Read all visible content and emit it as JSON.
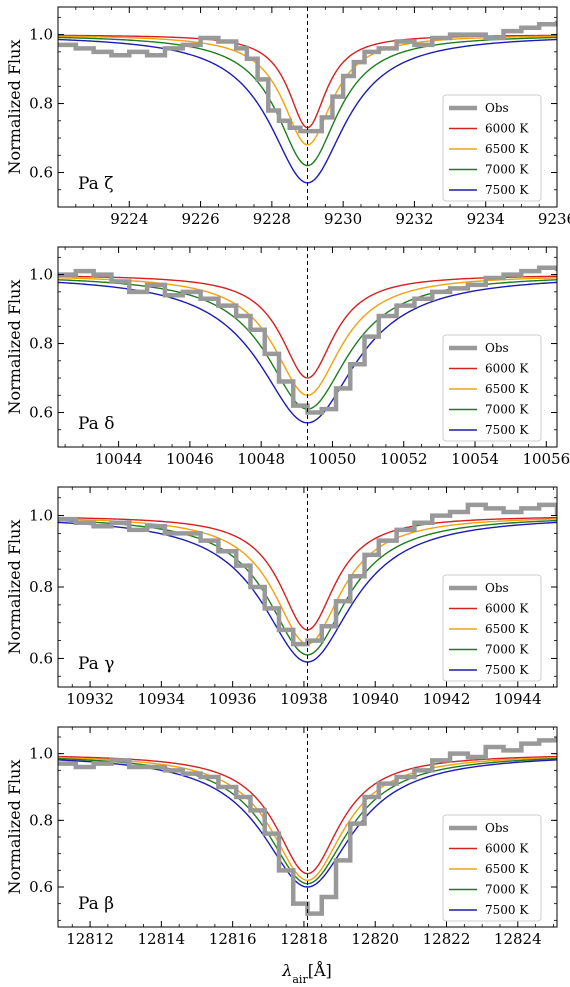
{
  "figure": {
    "xlabel_main": "λ",
    "xlabel_sub": "air",
    "xlabel_unit": "[Å]",
    "ylabel": "Normalized Flux"
  },
  "styles": {
    "obs_color": "#999999",
    "marker_line_color": "#000000"
  },
  "chart_data": [
    {
      "type": "line",
      "label": "Pa ζ",
      "line_center": 9229.0,
      "xlim": [
        9222.0,
        9236.0
      ],
      "ylim": [
        0.5,
        1.08
      ],
      "xticks": [
        9224,
        9226,
        9228,
        9230,
        9232,
        9234,
        9236
      ],
      "yticks": [
        0.6,
        0.8,
        1.0
      ],
      "legend_position": "lower-right",
      "series": [
        {
          "name": "Obs",
          "kind": "obs",
          "color": "#999999",
          "x": [
            9222.0,
            9222.5,
            9223.0,
            9223.5,
            9224.0,
            9224.5,
            9225.0,
            9225.5,
            9226.0,
            9226.5,
            9227.0,
            9227.3,
            9227.6,
            9227.9,
            9228.2,
            9228.5,
            9228.8,
            9229.1,
            9229.4,
            9229.7,
            9230.0,
            9230.3,
            9230.6,
            9231.0,
            9231.5,
            9232.0,
            9232.5,
            9233.0,
            9233.5,
            9234.0,
            9234.5,
            9235.0,
            9235.5,
            9236.0
          ],
          "y": [
            0.97,
            0.96,
            0.95,
            0.94,
            0.95,
            0.94,
            0.96,
            0.97,
            0.99,
            0.98,
            0.96,
            0.93,
            0.87,
            0.78,
            0.75,
            0.73,
            0.72,
            0.72,
            0.76,
            0.82,
            0.88,
            0.92,
            0.95,
            0.96,
            0.98,
            0.97,
            0.99,
            1.0,
            1.0,
            0.99,
            1.01,
            1.02,
            1.03,
            1.04
          ]
        },
        {
          "name": "6000 K",
          "kind": "model",
          "color": "#d62020",
          "depth": 0.27,
          "width": 0.65
        },
        {
          "name": "6500 K",
          "kind": "model",
          "color": "#f2a10f",
          "depth": 0.32,
          "width": 0.85
        },
        {
          "name": "7000 K",
          "kind": "model",
          "color": "#1e7d1e",
          "depth": 0.38,
          "width": 1.05
        },
        {
          "name": "7500 K",
          "kind": "model",
          "color": "#1c1cb4",
          "depth": 0.43,
          "width": 1.3
        }
      ]
    },
    {
      "type": "line",
      "label": "Pa δ",
      "line_center": 10049.3,
      "xlim": [
        10042.3,
        10056.3
      ],
      "ylim": [
        0.5,
        1.08
      ],
      "xticks": [
        10044,
        10046,
        10048,
        10050,
        10052,
        10054,
        10056
      ],
      "yticks": [
        0.6,
        0.8,
        1.0
      ],
      "legend_position": "lower-right",
      "series": [
        {
          "name": "Obs",
          "kind": "obs",
          "color": "#999999",
          "x": [
            10042.3,
            10042.8,
            10043.3,
            10043.8,
            10044.3,
            10044.8,
            10045.3,
            10045.8,
            10046.3,
            10046.8,
            10047.3,
            10047.7,
            10048.1,
            10048.5,
            10048.9,
            10049.3,
            10049.7,
            10050.1,
            10050.5,
            10050.9,
            10051.3,
            10051.8,
            10052.3,
            10052.8,
            10053.3,
            10053.8,
            10054.3,
            10054.8,
            10055.3,
            10055.8,
            10056.3
          ],
          "y": [
            1.0,
            1.01,
            1.0,
            0.98,
            0.95,
            0.97,
            0.94,
            0.95,
            0.93,
            0.91,
            0.88,
            0.84,
            0.77,
            0.69,
            0.62,
            0.6,
            0.61,
            0.67,
            0.74,
            0.82,
            0.88,
            0.91,
            0.93,
            0.95,
            0.96,
            0.97,
            0.99,
            1.0,
            1.01,
            1.02,
            1.01
          ]
        },
        {
          "name": "6000 K",
          "kind": "model",
          "color": "#d62020",
          "depth": 0.3,
          "width": 0.9
        },
        {
          "name": "6500 K",
          "kind": "model",
          "color": "#f2a10f",
          "depth": 0.35,
          "width": 1.15
        },
        {
          "name": "7000 K",
          "kind": "model",
          "color": "#1e7d1e",
          "depth": 0.39,
          "width": 1.4
        },
        {
          "name": "7500 K",
          "kind": "model",
          "color": "#1c1cb4",
          "depth": 0.43,
          "width": 1.65
        }
      ]
    },
    {
      "type": "line",
      "label": "Pa γ",
      "line_center": 10938.1,
      "xlim": [
        10931.1,
        10945.1
      ],
      "ylim": [
        0.52,
        1.08
      ],
      "xticks": [
        10932,
        10934,
        10936,
        10938,
        10940,
        10942,
        10944
      ],
      "yticks": [
        0.6,
        0.8,
        1.0
      ],
      "legend_position": "lower-right",
      "series": [
        {
          "name": "Obs",
          "kind": "obs",
          "color": "#999999",
          "x": [
            10931.1,
            10931.6,
            10932.1,
            10932.6,
            10933.1,
            10933.6,
            10934.1,
            10934.6,
            10935.1,
            10935.6,
            10936.1,
            10936.5,
            10936.9,
            10937.3,
            10937.7,
            10938.1,
            10938.5,
            10938.9,
            10939.3,
            10939.7,
            10940.1,
            10940.6,
            10941.1,
            10941.6,
            10942.1,
            10942.6,
            10943.1,
            10943.6,
            10944.1,
            10944.6,
            10945.1
          ],
          "y": [
            0.99,
            0.98,
            0.97,
            0.98,
            0.96,
            0.97,
            0.95,
            0.95,
            0.93,
            0.9,
            0.86,
            0.8,
            0.74,
            0.68,
            0.64,
            0.65,
            0.69,
            0.76,
            0.83,
            0.89,
            0.93,
            0.96,
            0.98,
            1.0,
            1.01,
            1.03,
            1.02,
            1.01,
            1.02,
            1.03,
            1.0
          ]
        },
        {
          "name": "6000 K",
          "kind": "model",
          "color": "#d62020",
          "depth": 0.32,
          "width": 0.95
        },
        {
          "name": "6500 K",
          "kind": "model",
          "color": "#f2a10f",
          "depth": 0.36,
          "width": 1.15
        },
        {
          "name": "7000 K",
          "kind": "model",
          "color": "#1e7d1e",
          "depth": 0.39,
          "width": 1.35
        },
        {
          "name": "7500 K",
          "kind": "model",
          "color": "#1c1cb4",
          "depth": 0.41,
          "width": 1.55
        }
      ]
    },
    {
      "type": "line",
      "label": "Pa β",
      "line_center": 12818.1,
      "xlim": [
        12811.1,
        12825.1
      ],
      "ylim": [
        0.48,
        1.08
      ],
      "xticks": [
        12812,
        12814,
        12816,
        12818,
        12820,
        12822,
        12824
      ],
      "yticks": [
        0.6,
        0.8,
        1.0
      ],
      "legend_position": "lower-right",
      "series": [
        {
          "name": "Obs",
          "kind": "obs",
          "color": "#999999",
          "x": [
            12811.1,
            12811.6,
            12812.1,
            12812.6,
            12813.1,
            12813.6,
            12814.1,
            12814.6,
            12815.1,
            12815.6,
            12816.1,
            12816.5,
            12816.9,
            12817.3,
            12817.7,
            12818.1,
            12818.5,
            12818.9,
            12819.3,
            12819.7,
            12820.1,
            12820.6,
            12821.1,
            12821.6,
            12822.1,
            12822.6,
            12823.1,
            12823.6,
            12824.1,
            12824.6,
            12825.1
          ],
          "y": [
            0.97,
            0.96,
            0.97,
            0.98,
            0.96,
            0.96,
            0.95,
            0.94,
            0.93,
            0.9,
            0.87,
            0.83,
            0.76,
            0.65,
            0.55,
            0.52,
            0.57,
            0.68,
            0.79,
            0.87,
            0.91,
            0.93,
            0.95,
            0.98,
            1.0,
            0.99,
            1.02,
            1.01,
            1.03,
            1.04,
            1.05
          ]
        },
        {
          "name": "6000 K",
          "kind": "model",
          "color": "#d62020",
          "depth": 0.36,
          "width": 1.1
        },
        {
          "name": "6500 K",
          "kind": "model",
          "color": "#f2a10f",
          "depth": 0.38,
          "width": 1.25
        },
        {
          "name": "7000 K",
          "kind": "model",
          "color": "#1e7d1e",
          "depth": 0.39,
          "width": 1.4
        },
        {
          "name": "7500 K",
          "kind": "model",
          "color": "#1c1cb4",
          "depth": 0.4,
          "width": 1.55
        }
      ]
    }
  ]
}
